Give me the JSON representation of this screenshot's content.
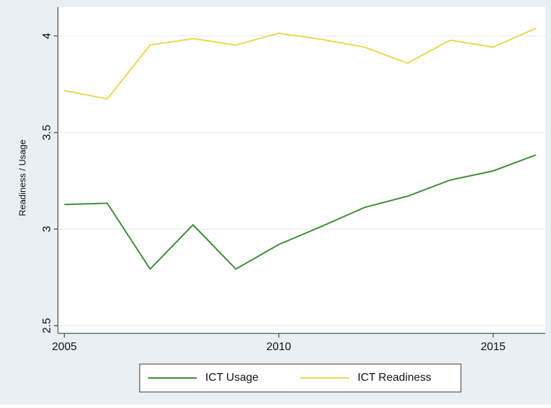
{
  "chart_data": {
    "type": "line",
    "y_label": "Readiness / Usage",
    "x": [
      2005,
      2006,
      2007,
      2008,
      2009,
      2010,
      2011,
      2012,
      2013,
      2014,
      2015,
      2016
    ],
    "series": [
      {
        "name": "ICT Usage",
        "color": "#3d8b37",
        "values": [
          3.127,
          3.134,
          2.793,
          3.022,
          2.793,
          2.92,
          3.014,
          3.112,
          3.17,
          3.254,
          3.301,
          3.384
        ]
      },
      {
        "name": "ICT Readiness",
        "color": "#e9d64f",
        "values": [
          3.717,
          3.674,
          3.953,
          3.986,
          3.953,
          4.014,
          3.982,
          3.942,
          3.859,
          3.978,
          3.942,
          4.04
        ]
      }
    ],
    "xlim": [
      2004.85,
      2016.22
    ],
    "xticks": [
      2005,
      2010,
      2015
    ],
    "ylim": [
      2.46,
      4.15
    ],
    "yticks": [
      2.5,
      3,
      3.5,
      4
    ],
    "grid": true
  }
}
